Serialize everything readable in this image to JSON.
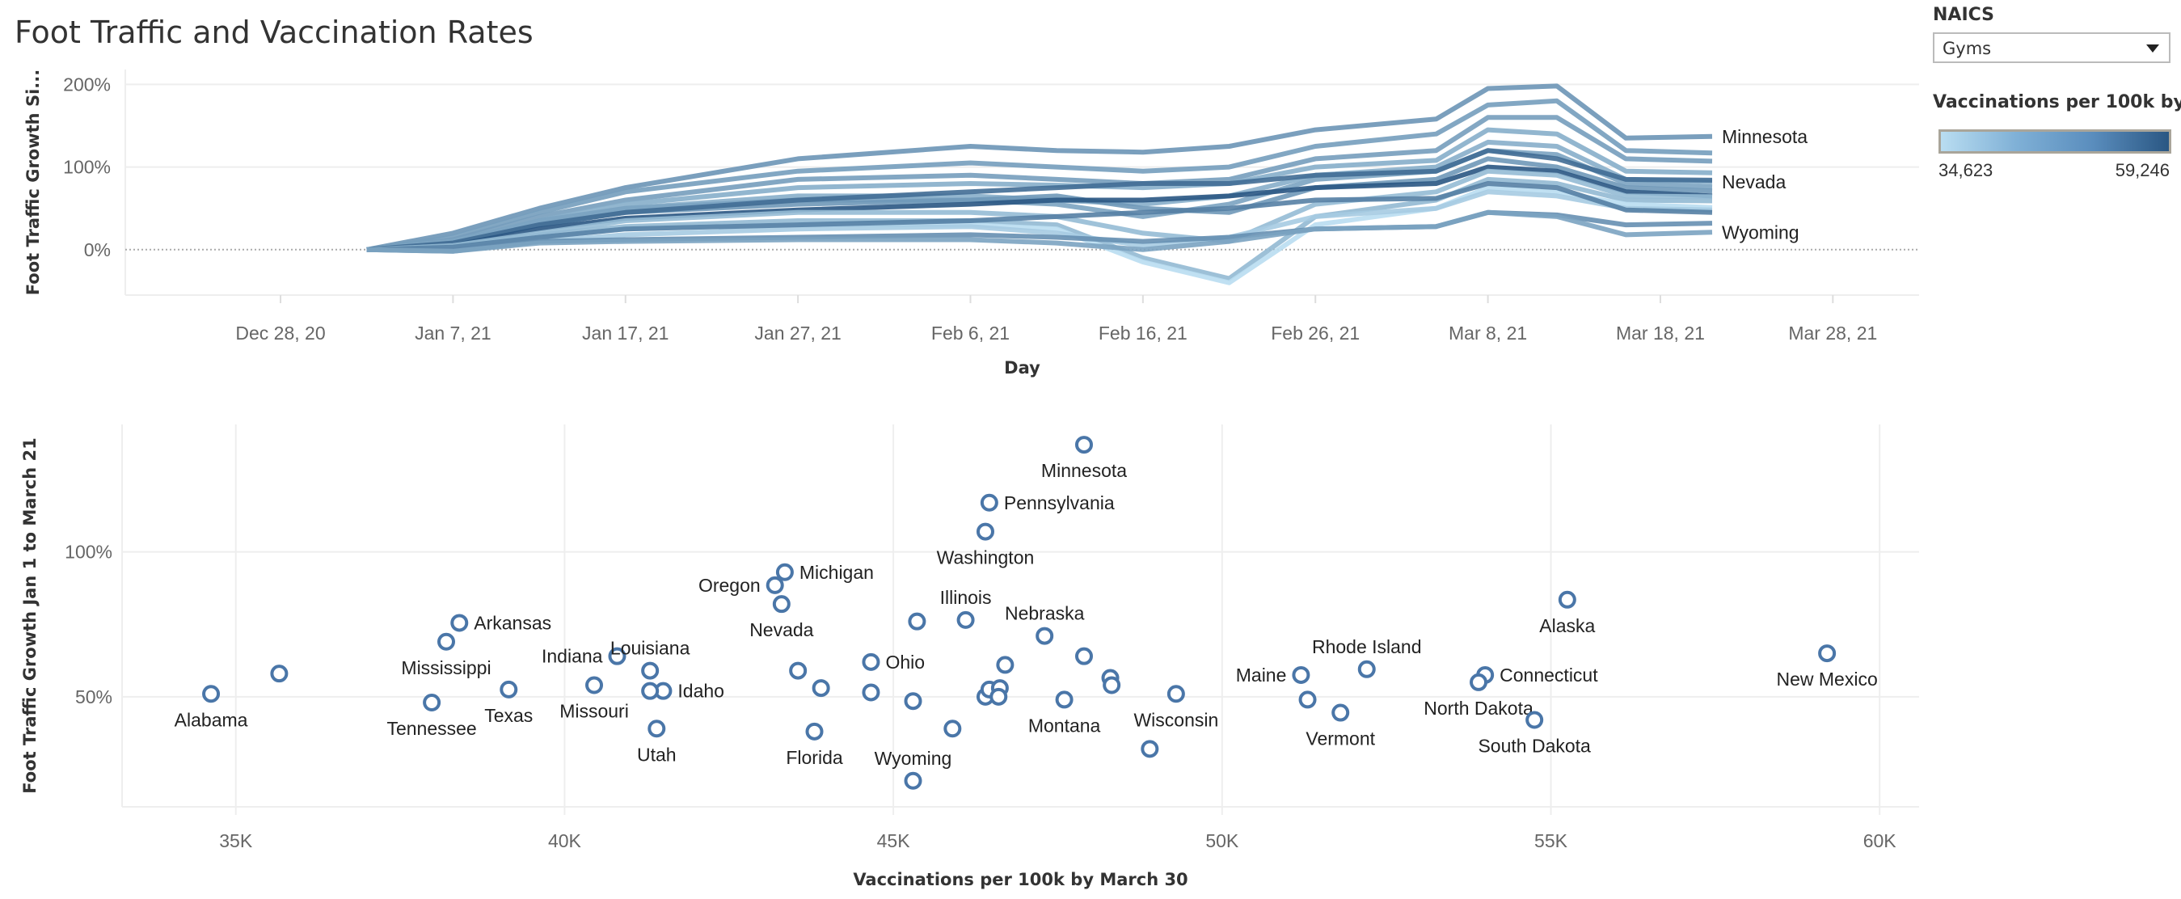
{
  "title": "Foot Traffic and Vaccination Rates",
  "filter": {
    "label": "NAICS",
    "selected": "Gyms"
  },
  "legend": {
    "title": "Vaccinations per 100k by...",
    "min_label": "34,623",
    "max_label": "59,246",
    "min": 34623,
    "max": 59246,
    "color_low": "#b9ddf1",
    "color_high": "#2a5783"
  },
  "chart_data": [
    {
      "type": "line",
      "ylabel": "Foot Traffic Growth Si...",
      "xlabel": "Day",
      "ylim": [
        -55,
        218
      ],
      "xlim": [
        "2020-12-19",
        "2021-04-02"
      ],
      "yticks": [
        {
          "v": 0,
          "label": "0%"
        },
        {
          "v": 100,
          "label": "100%"
        },
        {
          "v": 200,
          "label": "200%"
        }
      ],
      "xticks": [
        {
          "date": "2020-12-28",
          "label": "Dec 28, 20"
        },
        {
          "date": "2021-01-07",
          "label": "Jan 7, 21"
        },
        {
          "date": "2021-01-17",
          "label": "Jan 17, 21"
        },
        {
          "date": "2021-01-27",
          "label": "Jan 27, 21"
        },
        {
          "date": "2021-02-06",
          "label": "Feb 6, 21"
        },
        {
          "date": "2021-02-16",
          "label": "Feb 16, 21"
        },
        {
          "date": "2021-02-26",
          "label": "Feb 26, 21"
        },
        {
          "date": "2021-03-08",
          "label": "Mar 8, 21"
        },
        {
          "date": "2021-03-18",
          "label": "Mar 18, 21"
        },
        {
          "date": "2021-03-28",
          "label": "Mar 28, 21"
        }
      ],
      "x": [
        "2021-01-02",
        "2021-01-07",
        "2021-01-12",
        "2021-01-17",
        "2021-01-27",
        "2021-02-06",
        "2021-02-11",
        "2021-02-16",
        "2021-02-21",
        "2021-02-26",
        "2021-03-05",
        "2021-03-08",
        "2021-03-12",
        "2021-03-16",
        "2021-03-21"
      ],
      "series": [
        {
          "name": "Minnesota",
          "vacc": 47900,
          "values": [
            0,
            20,
            50,
            75,
            110,
            125,
            120,
            118,
            125,
            145,
            158,
            195,
            198,
            135,
            137
          ]
        },
        {
          "vacc": 46460,
          "values": [
            0,
            15,
            45,
            70,
            95,
            105,
            100,
            95,
            100,
            125,
            140,
            175,
            180,
            120,
            117
          ]
        },
        {
          "vacc": 46400,
          "values": [
            0,
            12,
            40,
            60,
            85,
            90,
            85,
            80,
            85,
            110,
            120,
            160,
            160,
            110,
            107
          ]
        },
        {
          "vacc": 43350,
          "values": [
            0,
            10,
            35,
            55,
            75,
            80,
            78,
            75,
            80,
            100,
            108,
            145,
            140,
            95,
            93
          ]
        },
        {
          "name": "Nevada",
          "vacc": 43300,
          "values": [
            0,
            8,
            30,
            50,
            65,
            65,
            60,
            55,
            65,
            90,
            100,
            130,
            125,
            85,
            82
          ]
        },
        {
          "vacc": 45360,
          "values": [
            0,
            10,
            35,
            50,
            60,
            60,
            55,
            40,
            55,
            85,
            95,
            120,
            115,
            80,
            76
          ]
        },
        {
          "vacc": 47300,
          "values": [
            0,
            8,
            30,
            45,
            55,
            60,
            65,
            50,
            45,
            75,
            85,
            110,
            100,
            75,
            71
          ]
        },
        {
          "vacc": 55250,
          "values": [
            0,
            8,
            30,
            45,
            60,
            70,
            75,
            80,
            80,
            90,
            95,
            120,
            110,
            85,
            84
          ]
        },
        {
          "vacc": 59200,
          "values": [
            0,
            5,
            25,
            38,
            48,
            55,
            60,
            60,
            65,
            75,
            80,
            100,
            95,
            70,
            65
          ]
        },
        {
          "vacc": 40800,
          "values": [
            0,
            5,
            20,
            35,
            45,
            45,
            40,
            20,
            10,
            55,
            70,
            95,
            90,
            65,
            64
          ]
        },
        {
          "vacc": 41300,
          "values": [
            0,
            3,
            18,
            28,
            35,
            35,
            30,
            -10,
            -35,
            40,
            60,
            85,
            80,
            60,
            59
          ]
        },
        {
          "vacc": 34623,
          "values": [
            0,
            2,
            15,
            25,
            30,
            30,
            25,
            -15,
            -40,
            30,
            50,
            75,
            70,
            55,
            51
          ]
        },
        {
          "vacc": 37980,
          "values": [
            0,
            0,
            10,
            18,
            25,
            28,
            20,
            5,
            15,
            40,
            50,
            70,
            65,
            50,
            48
          ]
        },
        {
          "vacc": 51800,
          "values": [
            0,
            3,
            15,
            25,
            30,
            35,
            40,
            45,
            50,
            60,
            62,
            80,
            75,
            48,
            45
          ]
        },
        {
          "vacc": 48900,
          "values": [
            0,
            -2,
            10,
            12,
            15,
            18,
            15,
            10,
            15,
            25,
            28,
            45,
            42,
            30,
            32
          ]
        },
        {
          "name": "Wyoming",
          "vacc": 45300,
          "values": [
            0,
            -2,
            8,
            10,
            12,
            12,
            8,
            0,
            10,
            25,
            28,
            45,
            40,
            18,
            21
          ]
        }
      ]
    },
    {
      "type": "scatter",
      "xlabel": "Vaccinations per 100k by March 30",
      "ylabel": "Foot Traffic Growth Jan 1 to March 21",
      "xlim": [
        33270,
        60600
      ],
      "ylim": [
        12,
        144
      ],
      "xticks": [
        {
          "v": 35000,
          "label": "35K"
        },
        {
          "v": 40000,
          "label": "40K"
        },
        {
          "v": 45000,
          "label": "45K"
        },
        {
          "v": 50000,
          "label": "50K"
        },
        {
          "v": 55000,
          "label": "55K"
        },
        {
          "v": 60000,
          "label": "60K"
        }
      ],
      "yticks": [
        {
          "v": 50,
          "label": "50%"
        },
        {
          "v": 100,
          "label": "100%"
        }
      ],
      "color": "#4a76a8",
      "points": [
        {
          "label": "Alabama",
          "x": 34623,
          "y": 51,
          "pos": "below"
        },
        {
          "x": 35660,
          "y": 58
        },
        {
          "label": "Arkansas",
          "x": 38400,
          "y": 75.5,
          "pos": "right"
        },
        {
          "label": "Mississippi",
          "x": 38200,
          "y": 69,
          "pos": "below"
        },
        {
          "label": "Tennessee",
          "x": 37980,
          "y": 48,
          "pos": "below"
        },
        {
          "label": "Texas",
          "x": 39150,
          "y": 52.5,
          "pos": "below"
        },
        {
          "label": "Indiana",
          "x": 40800,
          "y": 64,
          "pos": "left"
        },
        {
          "label": "Missouri",
          "x": 40450,
          "y": 54,
          "pos": "below"
        },
        {
          "label": "Louisiana",
          "x": 41300,
          "y": 59,
          "pos": "above"
        },
        {
          "label": "Idaho",
          "x": 41500,
          "y": 52,
          "pos": "right"
        },
        {
          "x": 41300,
          "y": 52
        },
        {
          "label": "Utah",
          "x": 41400,
          "y": 39,
          "pos": "below"
        },
        {
          "label": "Oregon",
          "x": 43200,
          "y": 88.5,
          "pos": "left"
        },
        {
          "label": "Michigan",
          "x": 43350,
          "y": 93,
          "pos": "right"
        },
        {
          "label": "Nevada",
          "x": 43300,
          "y": 82,
          "pos": "below"
        },
        {
          "x": 43550,
          "y": 59
        },
        {
          "x": 43900,
          "y": 53
        },
        {
          "label": "Florida",
          "x": 43800,
          "y": 38,
          "pos": "below"
        },
        {
          "label": "Ohio",
          "x": 44660,
          "y": 62,
          "pos": "right"
        },
        {
          "x": 44660,
          "y": 51.5
        },
        {
          "x": 45360,
          "y": 76
        },
        {
          "x": 45300,
          "y": 48.5
        },
        {
          "label": "Wyoming",
          "x": 45300,
          "y": 21,
          "pos": "above"
        },
        {
          "x": 45900,
          "y": 39
        },
        {
          "label": "Illinois",
          "x": 46100,
          "y": 76.5,
          "pos": "above"
        },
        {
          "label": "Pennsylvania",
          "x": 46460,
          "y": 117,
          "pos": "right"
        },
        {
          "label": "Washington",
          "x": 46400,
          "y": 107,
          "pos": "below"
        },
        {
          "x": 46700,
          "y": 61
        },
        {
          "x": 46400,
          "y": 50
        },
        {
          "x": 46460,
          "y": 52.5
        },
        {
          "x": 46620,
          "y": 53
        },
        {
          "x": 46600,
          "y": 50
        },
        {
          "label": "Montana",
          "x": 47600,
          "y": 49,
          "pos": "below"
        },
        {
          "label": "Minnesota",
          "x": 47900,
          "y": 137,
          "pos": "below"
        },
        {
          "label": "Nebraska",
          "x": 47300,
          "y": 71,
          "pos": "above"
        },
        {
          "x": 47900,
          "y": 64
        },
        {
          "x": 48300,
          "y": 56.5
        },
        {
          "x": 48320,
          "y": 54
        },
        {
          "label": "Wisconsin",
          "x": 49300,
          "y": 51,
          "pos": "below"
        },
        {
          "x": 48900,
          "y": 32
        },
        {
          "label": "Maine",
          "x": 51200,
          "y": 57.5,
          "pos": "left"
        },
        {
          "x": 51300,
          "y": 49
        },
        {
          "label": "Vermont",
          "x": 51800,
          "y": 44.5,
          "pos": "below"
        },
        {
          "label": "Rhode Island",
          "x": 52200,
          "y": 59.5,
          "pos": "above"
        },
        {
          "label": "Connecticut",
          "x": 54000,
          "y": 57.5,
          "pos": "right"
        },
        {
          "label": "North Dakota",
          "x": 53900,
          "y": 55,
          "pos": "below"
        },
        {
          "label": "South Dakota",
          "x": 54750,
          "y": 42,
          "pos": "below"
        },
        {
          "label": "Alaska",
          "x": 55250,
          "y": 83.5,
          "pos": "below"
        },
        {
          "label": "New Mexico",
          "x": 59200,
          "y": 65,
          "pos": "below"
        }
      ]
    }
  ]
}
